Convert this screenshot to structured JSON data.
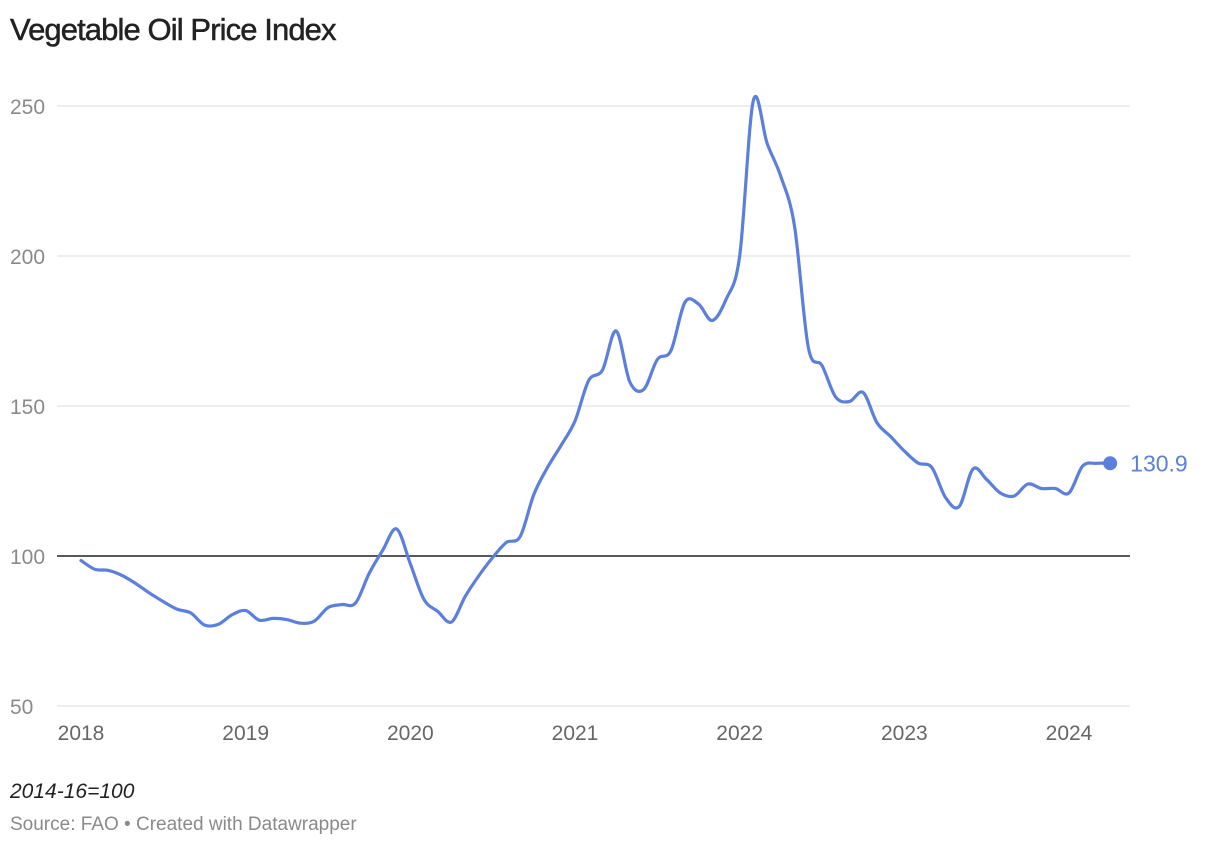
{
  "chart_data": {
    "type": "line",
    "title": "Vegetable Oil Price Index",
    "xlabel": "",
    "ylabel": "",
    "note": "2014-16=100",
    "source": "Source: FAO • Created with Datawrapper",
    "ylim": [
      50,
      250
    ],
    "y_ticks": [
      "250",
      "200",
      "150",
      "100",
      "50"
    ],
    "y_tick_values": [
      250,
      200,
      150,
      100,
      50
    ],
    "baseline": 100,
    "xlim": [
      2018,
      2024.67
    ],
    "x_ticks": [
      "2018",
      "2019",
      "2020",
      "2021",
      "2022",
      "2023",
      "2024"
    ],
    "x_tick_values": [
      2018,
      2019,
      2020,
      2021,
      2022,
      2023,
      2024
    ],
    "grid": true,
    "line_color": "#5b7fdc",
    "baseline_color": "#222222",
    "end_label": "130.9",
    "series": [
      {
        "name": "Vegetable Oil Price Index",
        "x": [
          2018.0,
          2018.083,
          2018.167,
          2018.25,
          2018.333,
          2018.417,
          2018.5,
          2018.583,
          2018.667,
          2018.75,
          2018.833,
          2018.917,
          2019.0,
          2019.083,
          2019.167,
          2019.25,
          2019.333,
          2019.417,
          2019.5,
          2019.583,
          2019.667,
          2019.75,
          2019.833,
          2019.917,
          2020.0,
          2020.083,
          2020.167,
          2020.25,
          2020.333,
          2020.417,
          2020.5,
          2020.583,
          2020.667,
          2020.75,
          2020.833,
          2020.917,
          2021.0,
          2021.083,
          2021.167,
          2021.25,
          2021.333,
          2021.417,
          2021.5,
          2021.583,
          2021.667,
          2021.75,
          2021.833,
          2021.917,
          2022.0,
          2022.083,
          2022.167,
          2022.25,
          2022.333,
          2022.417,
          2022.5,
          2022.583,
          2022.667,
          2022.75,
          2022.833,
          2022.917,
          2023.0,
          2023.083,
          2023.167,
          2023.25,
          2023.333,
          2023.417,
          2023.5,
          2023.583,
          2023.667,
          2023.75,
          2023.833,
          2023.917,
          2024.0,
          2024.083,
          2024.167,
          2024.25
        ],
        "values": [
          98.5,
          95.6,
          95.2,
          93.5,
          90.8,
          87.6,
          84.8,
          82.3,
          81.0,
          77.0,
          77.2,
          80.4,
          81.8,
          78.6,
          79.2,
          78.8,
          77.6,
          78.3,
          82.8,
          83.8,
          84.3,
          94.2,
          102.0,
          109.0,
          97.4,
          85.5,
          81.5,
          78.0,
          86.5,
          93.5,
          99.5,
          104.5,
          106.5,
          120.5,
          129.5,
          137.0,
          145.0,
          158.5,
          162.0,
          175.0,
          158.0,
          155.5,
          165.5,
          168.5,
          184.5,
          184.0,
          178.5,
          185.5,
          200.0,
          251.8,
          237.5,
          226.5,
          210.0,
          169.5,
          163.5,
          153.0,
          151.5,
          154.5,
          144.5,
          139.8,
          135.0,
          131.0,
          129.5,
          119.5,
          116.5,
          129.0,
          125.5,
          121.0,
          120.0,
          124.0,
          122.5,
          122.5,
          121.0,
          130.0,
          130.9,
          130.9
        ]
      }
    ]
  }
}
